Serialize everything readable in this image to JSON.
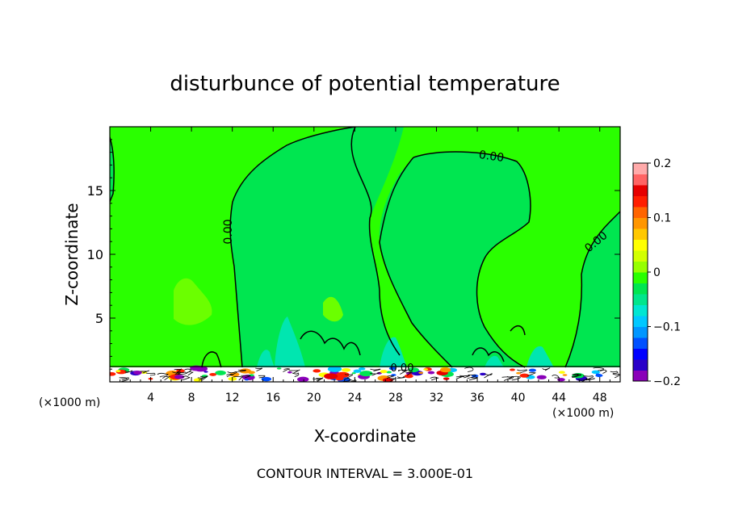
{
  "chart_data": {
    "type": "heatmap",
    "title": "disturbunce of potential temperature",
    "xlabel": "X-coordinate",
    "ylabel": "Z-coordinate",
    "x_unit": "(×1000 m)",
    "x_unit_right": "(×1000 m)",
    "xlim": [
      0,
      50
    ],
    "ylim": [
      0,
      20
    ],
    "xticks": [
      4,
      8,
      12,
      16,
      20,
      24,
      28,
      32,
      36,
      40,
      44,
      48
    ],
    "yticks": [
      5,
      10,
      15
    ],
    "contour_labels": [
      "0.00",
      "0.00",
      "0.00",
      "0.00"
    ],
    "footer": "CONTOUR INTERVAL = 3.000E-01",
    "colorbar": {
      "min": -0.2,
      "max": 0.2,
      "tick_values": [
        0.2,
        0.1,
        0,
        -0.1,
        -0.2
      ],
      "tick_labels": [
        "0.2",
        "0.1",
        "0",
        "−0.1",
        "−0.2"
      ],
      "colors": [
        "#8a00b8",
        "#2a00c8",
        "#0000ff",
        "#0050ff",
        "#0096ff",
        "#00c8ff",
        "#00e6d2",
        "#00e68c",
        "#00e650",
        "#2aff00",
        "#96ff00",
        "#d2ff00",
        "#ffff00",
        "#ffc800",
        "#ff9600",
        "#ff6400",
        "#ff1e00",
        "#e60000",
        "#ff6464",
        "#ffaaaa"
      ]
    },
    "background_value": 0.0
  }
}
